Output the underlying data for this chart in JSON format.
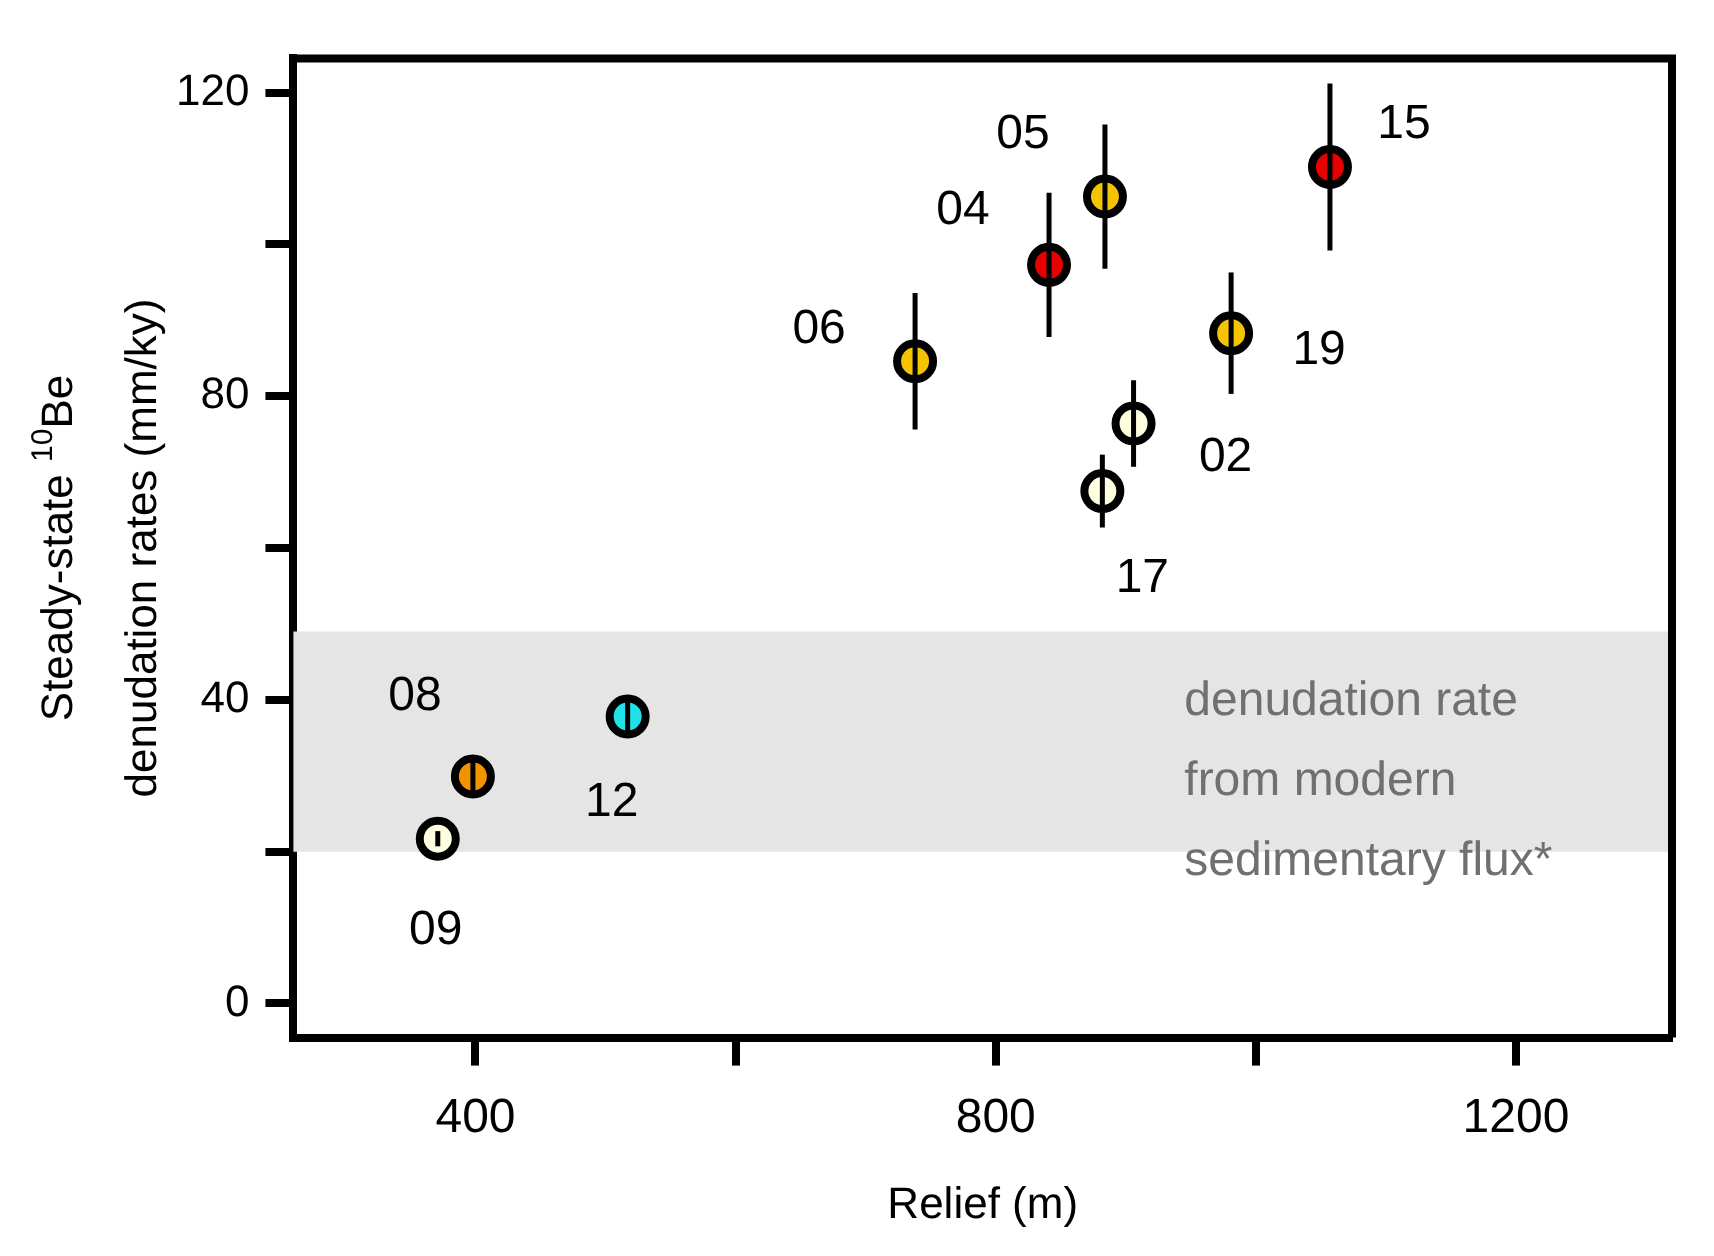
{
  "chart_data": {
    "type": "scatter",
    "xlabel": "Relief (m)",
    "ylabel": "Steady-state $^{10}$Be\ndenudation rates (mm/ky)",
    "x": [
      738,
      841,
      884,
      1057,
      981,
      906,
      882,
      398,
      371,
      517
    ],
    "values": [
      84.6,
      97.3,
      106.3,
      110.2,
      88.3,
      76.4,
      67.5,
      29.9,
      21.7,
      37.8
    ],
    "errors": [
      9,
      9.5,
      9.5,
      11,
      8,
      5.7,
      4.8,
      2,
      1,
      2.5
    ],
    "colors": [
      "#f5c400",
      "#e60000",
      "#f5c400",
      "#e60000",
      "#f5c400",
      "#fffde0",
      "#fffde0",
      "#f29400",
      "#fffde0",
      "#22e0e8"
    ],
    "marker": "circle",
    "grid": false,
    "legend": false,
    "xlim": [
      260,
      1320
    ],
    "xticks": [
      400,
      {
        "value": 600,
        "label": null
      },
      800,
      {
        "value": 1000,
        "label": null
      },
      1200
    ],
    "ylim": [
      -4.5,
      124.5
    ],
    "yticks": [
      0,
      {
        "value": 20,
        "label": null
      },
      40,
      {
        "value": 60,
        "label": null
      },
      80,
      {
        "value": 100,
        "label": null
      },
      120
    ],
    "bands": [
      {
        "axis": "y",
        "from": 20,
        "to": 49,
        "label": "denudation rate\nfrom modern\nsedimentary flux*",
        "color": "#e5e5e5"
      }
    ],
    "annotations": [
      {
        "text": "06",
        "x": 738,
        "y": 84.6
      },
      {
        "text": "04",
        "x": 841,
        "y": 97.3
      },
      {
        "text": "05",
        "x": 884,
        "y": 106.3
      },
      {
        "text": "15",
        "x": 1057,
        "y": 110.2
      },
      {
        "text": "19",
        "x": 981,
        "y": 88.3
      },
      {
        "text": "02",
        "x": 906,
        "y": 76.4
      },
      {
        "text": "17",
        "x": 882,
        "y": 67.5
      },
      {
        "text": "08",
        "x": 398,
        "y": 29.9
      },
      {
        "text": "09",
        "x": 371,
        "y": 21.7
      },
      {
        "text": "12",
        "x": 517,
        "y": 37.8
      }
    ]
  }
}
